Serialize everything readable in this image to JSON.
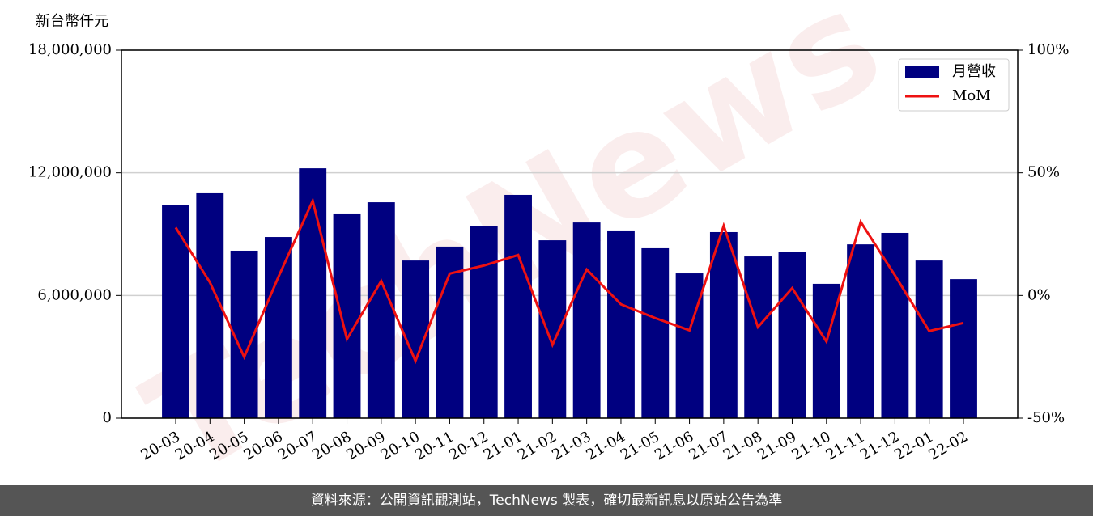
{
  "chart_data": {
    "type": "bar_line",
    "ylabel": "新台幣仟元",
    "watermark": "TechNews",
    "categories": [
      "20-03",
      "20-04",
      "20-05",
      "20-06",
      "20-07",
      "20-08",
      "20-09",
      "20-10",
      "20-11",
      "20-12",
      "21-01",
      "21-02",
      "21-03",
      "21-04",
      "21-05",
      "21-06",
      "21-07",
      "21-08",
      "21-09",
      "21-10",
      "21-11",
      "21-12",
      "22-01",
      "22-02"
    ],
    "series": [
      {
        "name": "月營收",
        "type": "bar",
        "color": "#000080",
        "values": [
          10440000,
          11000000,
          8190000,
          8860000,
          12220000,
          10010000,
          10560000,
          7710000,
          8390000,
          9380000,
          10920000,
          8700000,
          9570000,
          9180000,
          8310000,
          7080000,
          9100000,
          7910000,
          8110000,
          6570000,
          8500000,
          9060000,
          7710000,
          6800000
        ]
      },
      {
        "name": "MoM",
        "type": "line",
        "axis": "y2",
        "color": "#ee1111",
        "values": [
          27.7,
          5.3,
          -25.1,
          7.6,
          38.6,
          -17.8,
          5.9,
          -26.7,
          8.9,
          12.2,
          16.5,
          -20.1,
          10.6,
          -3.6,
          -9.2,
          -14.2,
          28.4,
          -12.9,
          3.0,
          -18.8,
          30.0,
          8.2,
          -14.5,
          -11.2
        ]
      }
    ],
    "ylim": [
      0,
      18000000
    ],
    "yticks": [
      0,
      {
        "value": 6000000,
        "label": "6,000,000"
      },
      {
        "value": 12000000,
        "label": "12,000,000"
      },
      {
        "value": 18000000,
        "label": "18,000,000"
      }
    ],
    "y2lim": [
      -50,
      100
    ],
    "y2ticks": [
      {
        "value": -50,
        "label": "-50%"
      },
      {
        "value": 0,
        "label": "0%"
      },
      {
        "value": 50,
        "label": "50%"
      },
      {
        "value": 100,
        "label": "100%"
      }
    ],
    "grid": true,
    "legend": "upper right"
  },
  "footer": "資料來源：公開資訊觀測站，TechNews 製表，確切最新訊息以原站公告為準"
}
